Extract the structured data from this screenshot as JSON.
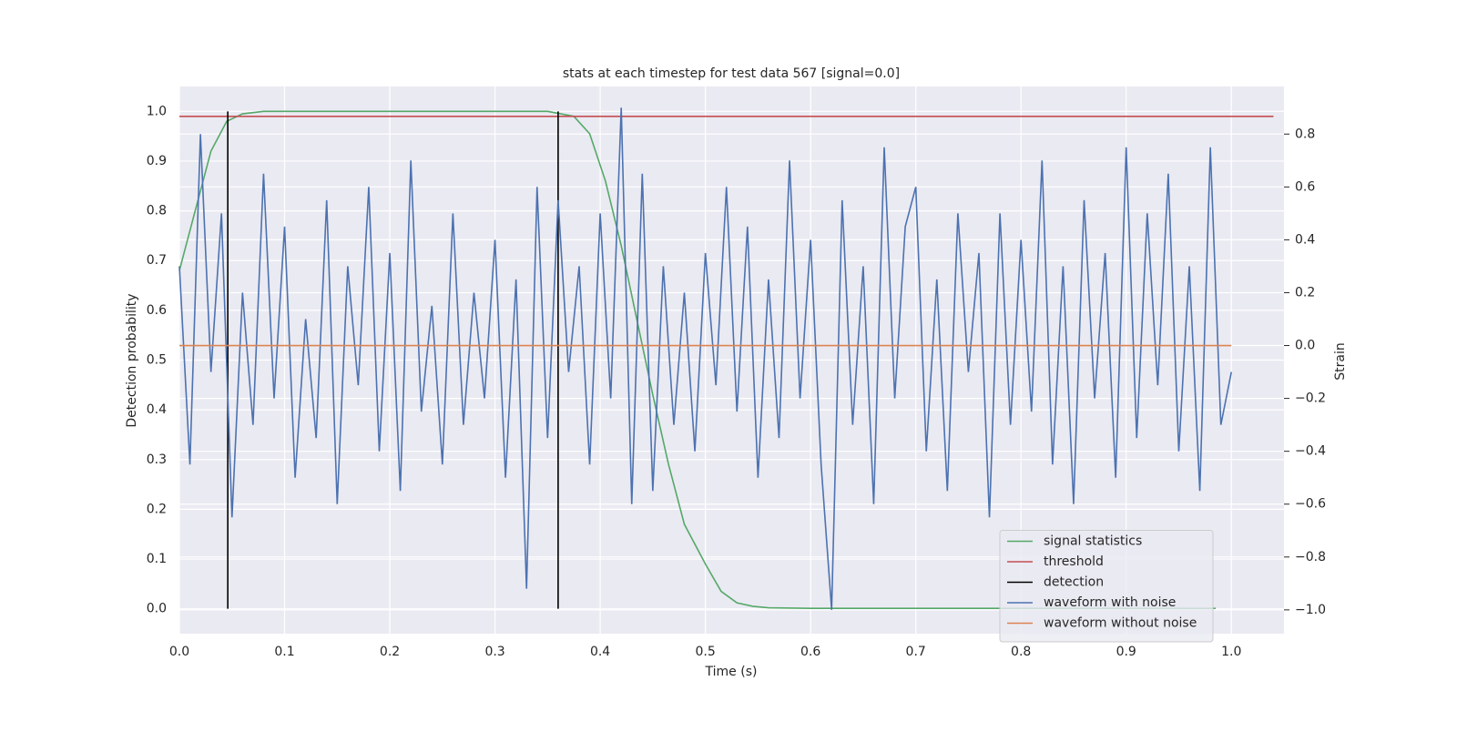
{
  "chart_data": {
    "type": "line",
    "title": "stats at each timestep for test data 567 [signal=0.0]",
    "xlabel": "Time (s)",
    "ylabel": "Detection probability",
    "y2label": "Strain",
    "xlim": [
      0,
      1.05
    ],
    "ylim": [
      -0.05,
      1.05
    ],
    "y2lim": [
      -1.09,
      0.98
    ],
    "xticks": [
      {
        "value": 0,
        "label": "0.0"
      },
      0.1,
      0.2,
      0.3,
      0.4,
      0.5,
      0.6,
      0.7,
      0.8,
      0.9,
      {
        "value": 1,
        "label": "1.0"
      }
    ],
    "yticks": [
      {
        "value": 0,
        "label": "0.0"
      },
      0.1,
      0.2,
      0.3,
      0.4,
      0.5,
      0.6,
      0.7,
      0.8,
      0.9,
      {
        "value": 1,
        "label": "1.0"
      }
    ],
    "y2ticks": [
      {
        "value": -1,
        "label": "−1.0"
      },
      {
        "value": -0.8,
        "label": "−0.8"
      },
      {
        "value": -0.6,
        "label": "−0.6"
      },
      {
        "value": -0.4,
        "label": "−0.4"
      },
      {
        "value": -0.2,
        "label": "−0.2"
      },
      {
        "value": 0,
        "label": "0.0"
      },
      0.2,
      0.4,
      0.6,
      0.8
    ],
    "grid": true,
    "legend": "lower right",
    "series": [
      {
        "name": "signal statistics",
        "color": "#55a868",
        "axis": "y",
        "x": [
          0,
          0.015,
          0.03,
          0.045,
          0.06,
          0.08,
          0.35,
          0.375,
          0.39,
          0.405,
          0.42,
          0.435,
          0.45,
          0.465,
          0.48,
          0.5,
          0.515,
          0.53,
          0.545,
          0.56,
          0.6,
          0.985
        ],
        "values": [
          0.68,
          0.8,
          0.92,
          0.98,
          0.995,
          1.0,
          1.0,
          0.99,
          0.955,
          0.86,
          0.73,
          0.58,
          0.43,
          0.29,
          0.17,
          0.09,
          0.035,
          0.012,
          0.005,
          0.002,
          0.001,
          0.001
        ]
      },
      {
        "name": "threshold",
        "color": "#c44e52",
        "axis": "y",
        "x": [
          0,
          1.04
        ],
        "values": [
          0.99,
          0.99
        ]
      },
      {
        "name": "detection",
        "color": "#000000",
        "axis": "y",
        "x": [
          0.046,
          0.046,
          null,
          0.36,
          0.36
        ],
        "values": [
          0,
          1,
          null,
          0,
          1
        ]
      },
      {
        "name": "waveform with noise",
        "color": "#4c72b0",
        "axis": "y2",
        "x": [
          0,
          0.01,
          0.02,
          0.03,
          0.04,
          0.05,
          0.06,
          0.07,
          0.08,
          0.09,
          0.1,
          0.11,
          0.12,
          0.13,
          0.14,
          0.15,
          0.16,
          0.17,
          0.18,
          0.19,
          0.2,
          0.21,
          0.22,
          0.23,
          0.24,
          0.25,
          0.26,
          0.27,
          0.28,
          0.29,
          0.3,
          0.31,
          0.32,
          0.33,
          0.34,
          0.35,
          0.36,
          0.37,
          0.38,
          0.39,
          0.4,
          0.41,
          0.42,
          0.43,
          0.44,
          0.45,
          0.46,
          0.47,
          0.48,
          0.49,
          0.5,
          0.51,
          0.52,
          0.53,
          0.54,
          0.55,
          0.56,
          0.57,
          0.58,
          0.59,
          0.6,
          0.61,
          0.62,
          0.63,
          0.64,
          0.65,
          0.66,
          0.67,
          0.68,
          0.69,
          0.7,
          0.71,
          0.72,
          0.73,
          0.74,
          0.75,
          0.76,
          0.77,
          0.78,
          0.79,
          0.8,
          0.81,
          0.82,
          0.83,
          0.84,
          0.85,
          0.86,
          0.87,
          0.88,
          0.89,
          0.9,
          0.91,
          0.92,
          0.93,
          0.94,
          0.95,
          0.96,
          0.97,
          0.98,
          0.99,
          1.0
        ],
        "values": [
          0.3,
          -0.45,
          0.8,
          -0.1,
          0.5,
          -0.65,
          0.2,
          -0.3,
          0.65,
          -0.2,
          0.45,
          -0.5,
          0.1,
          -0.35,
          0.55,
          -0.6,
          0.3,
          -0.15,
          0.6,
          -0.4,
          0.35,
          -0.55,
          0.7,
          -0.25,
          0.15,
          -0.45,
          0.5,
          -0.3,
          0.2,
          -0.2,
          0.4,
          -0.5,
          0.25,
          -0.92,
          0.6,
          -0.35,
          0.55,
          -0.1,
          0.3,
          -0.45,
          0.5,
          -0.2,
          0.9,
          -0.6,
          0.65,
          -0.55,
          0.3,
          -0.3,
          0.2,
          -0.4,
          0.35,
          -0.15,
          0.6,
          -0.25,
          0.45,
          -0.5,
          0.25,
          -0.35,
          0.7,
          -0.2,
          0.4,
          -0.45,
          -1.0,
          0.55,
          -0.3,
          0.3,
          -0.6,
          0.75,
          -0.2,
          0.45,
          0.6,
          -0.4,
          0.25,
          -0.55,
          0.5,
          -0.1,
          0.35,
          -0.65,
          0.5,
          -0.3,
          0.4,
          -0.25,
          0.7,
          -0.45,
          0.3,
          -0.6,
          0.55,
          -0.2,
          0.35,
          -0.5,
          0.75,
          -0.35,
          0.5,
          -0.15,
          0.65,
          -0.4,
          0.3,
          -0.55,
          0.75,
          -0.3,
          -0.1
        ]
      },
      {
        "name": "waveform without noise",
        "color": "#dd8452",
        "axis": "y2",
        "x": [
          0,
          1.0
        ],
        "values": [
          0,
          0
        ]
      }
    ]
  }
}
